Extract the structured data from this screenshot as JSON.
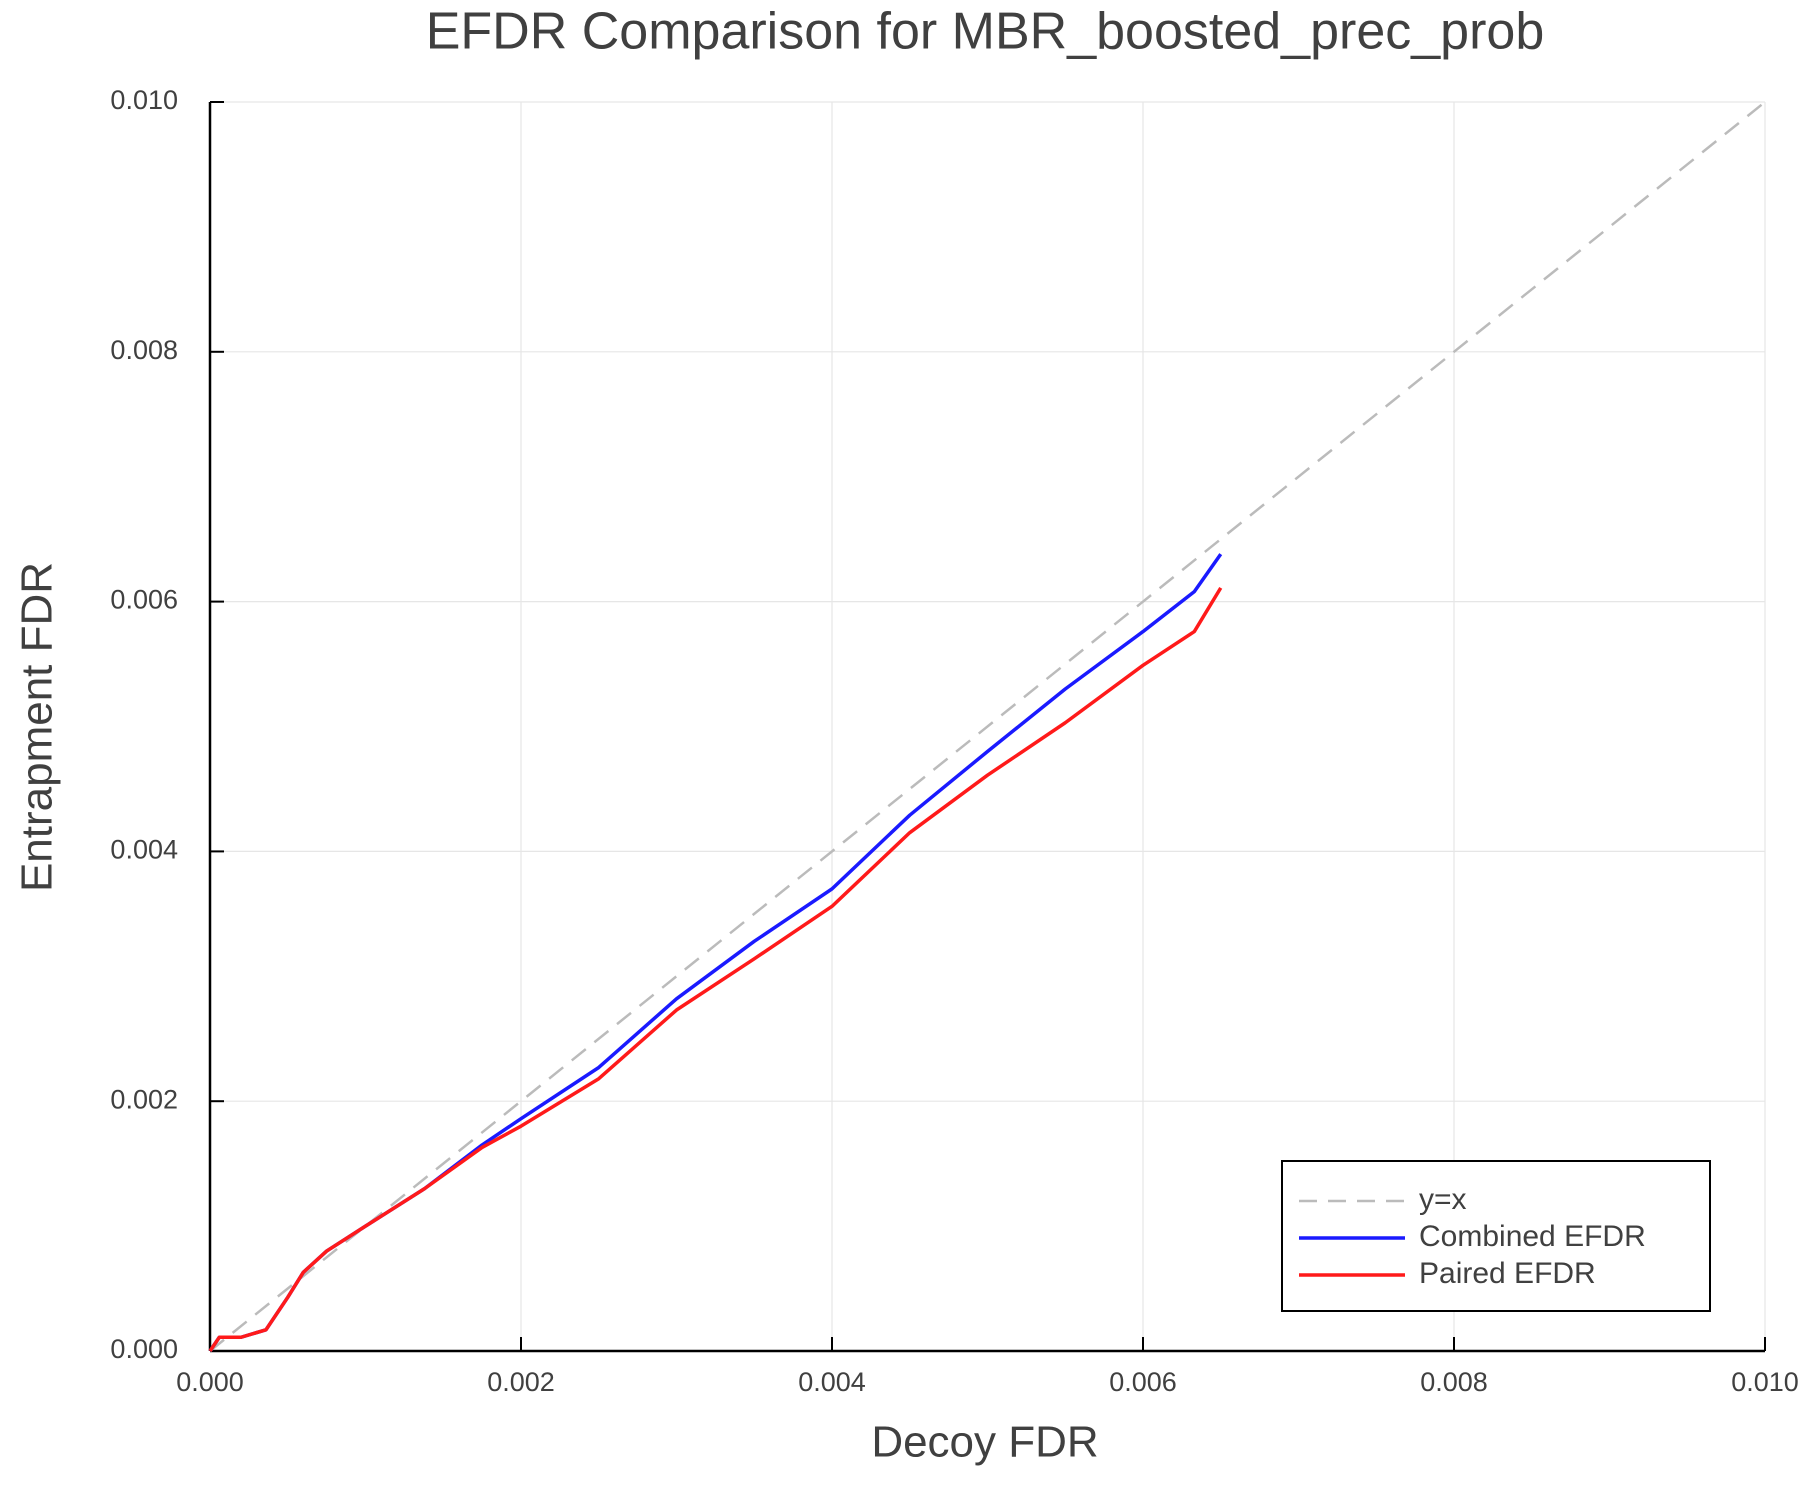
{
  "chart_data": {
    "type": "line",
    "title": "EFDR Comparison for MBR_boosted_prec_prob",
    "x_label": "Decoy FDR",
    "y_label": "Entrapment FDR",
    "xlim": [
      0,
      0.01
    ],
    "ylim": [
      0,
      0.01
    ],
    "xticks": [
      {
        "value": 0,
        "label": "0.000"
      },
      0.002,
      0.004,
      0.006,
      0.008,
      {
        "value": 0.01,
        "label": "0.010"
      }
    ],
    "yticks": [
      {
        "value": 0,
        "label": "0.000"
      },
      0.002,
      0.004,
      0.006,
      0.008,
      {
        "value": 0.01,
        "label": "0.010"
      }
    ],
    "grid": true,
    "legend": "lower right",
    "series": [
      {
        "name": "y=x",
        "color": "#bbbbbb",
        "dashed": true,
        "x": [
          0,
          0.01
        ],
        "values": [
          0,
          0.01
        ]
      },
      {
        "name": "Combined EFDR",
        "color": "#1a1aff",
        "x": [
          0,
          6e-05,
          0.0002,
          0.00036,
          0.0005,
          0.0006,
          0.00075,
          0.001,
          0.00138,
          0.00175,
          0.002,
          0.0025,
          0.003,
          0.0035,
          0.004,
          0.0045,
          0.005,
          0.0055,
          0.006,
          0.00633,
          0.0065
        ],
        "values": [
          0,
          0.00011,
          0.00011,
          0.00017,
          0.00043,
          0.00063,
          0.0008,
          0.001,
          0.0013,
          0.00165,
          0.00186,
          0.00227,
          0.00282,
          0.00328,
          0.0037,
          0.00429,
          0.0048,
          0.0053,
          0.00576,
          0.00608,
          0.00638
        ]
      },
      {
        "name": "Paired EFDR",
        "color": "#ff1a1a",
        "x": [
          0,
          6e-05,
          0.0002,
          0.00036,
          0.0005,
          0.0006,
          0.00075,
          0.001,
          0.00138,
          0.00175,
          0.002,
          0.0025,
          0.003,
          0.0035,
          0.004,
          0.0045,
          0.005,
          0.0055,
          0.006,
          0.00633,
          0.0065
        ],
        "values": [
          0,
          0.00011,
          0.00011,
          0.00017,
          0.00043,
          0.00063,
          0.0008,
          0.001,
          0.0013,
          0.00163,
          0.0018,
          0.00218,
          0.00273,
          0.00314,
          0.00356,
          0.00415,
          0.00461,
          0.00503,
          0.00549,
          0.00576,
          0.00611
        ]
      }
    ]
  }
}
